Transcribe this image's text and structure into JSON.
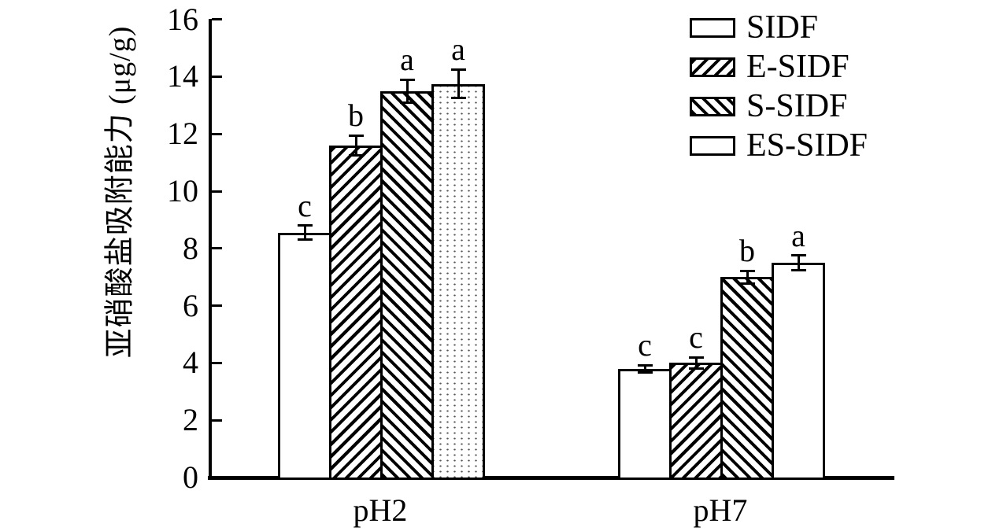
{
  "chart_data": {
    "type": "bar",
    "title": "",
    "xlabel": "",
    "ylabel": "亚硝酸盐吸附能力 (μg/g)",
    "categories": [
      "pH2",
      "pH7"
    ],
    "yticks": [
      0,
      2,
      4,
      6,
      8,
      10,
      12,
      14,
      16
    ],
    "ylim": [
      0,
      16
    ],
    "grid": false,
    "error_bars": true,
    "legend_position": "top-right",
    "series": [
      {
        "name": "SIDF",
        "legend_pattern": "plain",
        "bar_patterns": [
          "plain",
          "plain"
        ],
        "values": [
          8.55,
          3.8
        ],
        "errors": [
          0.25,
          0.12
        ],
        "sig_letters": [
          "c",
          "c"
        ]
      },
      {
        "name": "E-SIDF",
        "legend_pattern": "hatch-forward",
        "bar_patterns": [
          "hatch-forward",
          "hatch-forward"
        ],
        "values": [
          11.6,
          4.0
        ],
        "errors": [
          0.35,
          0.2
        ],
        "sig_letters": [
          "b",
          "c"
        ]
      },
      {
        "name": "S-SIDF",
        "legend_pattern": "hatch-backward",
        "bar_patterns": [
          "hatch-backward",
          "hatch-backward"
        ],
        "values": [
          13.5,
          7.0
        ],
        "errors": [
          0.4,
          0.22
        ],
        "sig_letters": [
          "a",
          "b"
        ]
      },
      {
        "name": "ES-SIDF",
        "legend_pattern": "plain",
        "bar_patterns": [
          "dots",
          "plain"
        ],
        "values": [
          13.75,
          7.5
        ],
        "errors": [
          0.5,
          0.25
        ],
        "sig_letters": [
          "a",
          "a"
        ]
      }
    ],
    "colors": {
      "foreground": "#000000",
      "background": "#ffffff",
      "dot_fill": "#555555"
    }
  }
}
